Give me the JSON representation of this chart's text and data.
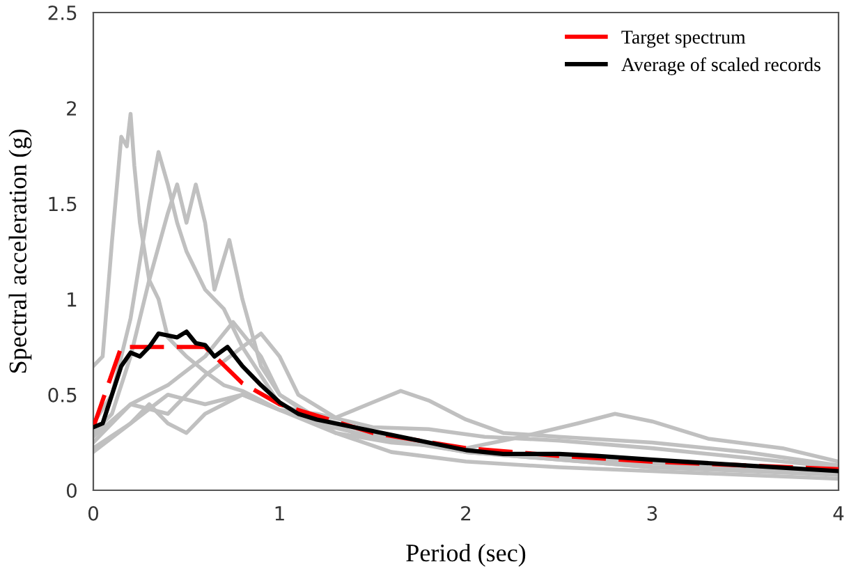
{
  "chart_data": {
    "type": "line",
    "xlabel": "Period (sec)",
    "ylabel": "Spectral acceleration (g)",
    "xlim": [
      0,
      4
    ],
    "xticks": [
      0,
      1,
      2,
      3,
      4
    ],
    "ylim": [
      0,
      2.5
    ],
    "yticks": [
      0,
      0.5,
      1,
      1.5,
      2,
      2.5
    ],
    "grid": false,
    "legend": "top right",
    "marker": "none",
    "series": [
      {
        "color": "#c0c0c0",
        "x": [
          0,
          0.05,
          0.1,
          0.15,
          0.18,
          0.2,
          0.22,
          0.25,
          0.3,
          0.35,
          0.4,
          0.5,
          0.6,
          0.7,
          0.8,
          1.0,
          1.2,
          1.5,
          2,
          2.5,
          3,
          3.5,
          4
        ],
        "values": [
          0.65,
          0.7,
          1.3,
          1.85,
          1.8,
          1.97,
          1.7,
          1.4,
          1.1,
          1.0,
          0.8,
          0.7,
          0.62,
          0.55,
          0.52,
          0.42,
          0.35,
          0.28,
          0.2,
          0.17,
          0.14,
          0.12,
          0.1
        ]
      },
      {
        "color": "#c0c0c0",
        "x": [
          0,
          0.1,
          0.2,
          0.3,
          0.35,
          0.4,
          0.45,
          0.5,
          0.6,
          0.7,
          0.8,
          0.9,
          1.0,
          1.2,
          1.4,
          1.6,
          2,
          2.5,
          3,
          4
        ],
        "values": [
          0.35,
          0.5,
          0.9,
          1.5,
          1.77,
          1.6,
          1.4,
          1.25,
          1.05,
          0.95,
          0.75,
          0.6,
          0.45,
          0.38,
          0.3,
          0.28,
          0.2,
          0.16,
          0.12,
          0.09
        ]
      },
      {
        "color": "#c0c0c0",
        "x": [
          0,
          0.1,
          0.2,
          0.3,
          0.4,
          0.45,
          0.5,
          0.55,
          0.6,
          0.65,
          0.73,
          0.8,
          0.9,
          1.0,
          1.2,
          1.6,
          2,
          3,
          4
        ],
        "values": [
          0.3,
          0.4,
          0.7,
          1.1,
          1.45,
          1.6,
          1.4,
          1.6,
          1.4,
          1.05,
          1.31,
          1.0,
          0.65,
          0.5,
          0.38,
          0.27,
          0.2,
          0.12,
          0.08
        ]
      },
      {
        "color": "#c0c0c0",
        "x": [
          0,
          0.2,
          0.4,
          0.6,
          0.8,
          0.9,
          1.0,
          1.1,
          1.3,
          1.5,
          1.65,
          1.8,
          2,
          2.2,
          2.5,
          3,
          3.5,
          4
        ],
        "values": [
          0.25,
          0.45,
          0.4,
          0.6,
          0.75,
          0.82,
          0.7,
          0.5,
          0.38,
          0.46,
          0.52,
          0.47,
          0.37,
          0.3,
          0.28,
          0.25,
          0.2,
          0.13
        ]
      },
      {
        "color": "#c0c0c0",
        "x": [
          0,
          0.2,
          0.4,
          0.6,
          0.8,
          1.0,
          1.3,
          1.6,
          2,
          2.3,
          2.6,
          2.8,
          3,
          3.3,
          3.7,
          4
        ],
        "values": [
          0.2,
          0.35,
          0.5,
          0.45,
          0.5,
          0.42,
          0.3,
          0.25,
          0.22,
          0.28,
          0.35,
          0.4,
          0.36,
          0.27,
          0.22,
          0.15
        ]
      },
      {
        "color": "#c0c0c0",
        "x": [
          0,
          0.2,
          0.3,
          0.4,
          0.5,
          0.6,
          0.8,
          1.0,
          1.2,
          1.5,
          1.8,
          2.1,
          2.5,
          3,
          3.5,
          4
        ],
        "values": [
          0.22,
          0.35,
          0.45,
          0.35,
          0.3,
          0.4,
          0.5,
          0.42,
          0.4,
          0.33,
          0.32,
          0.28,
          0.26,
          0.22,
          0.17,
          0.12
        ]
      },
      {
        "color": "#c0c0c0",
        "x": [
          0,
          0.2,
          0.4,
          0.6,
          0.75,
          0.9,
          1.0,
          1.3,
          1.6,
          2,
          2.5,
          3,
          3.5,
          4
        ],
        "values": [
          0.28,
          0.45,
          0.55,
          0.7,
          0.88,
          0.7,
          0.5,
          0.3,
          0.2,
          0.15,
          0.12,
          0.1,
          0.08,
          0.06
        ]
      },
      {
        "name": "Target spectrum",
        "color": "#ff0000",
        "line_style": "dashed",
        "x": [
          0,
          0.15,
          0.6,
          0.8,
          1.0,
          1.5,
          2,
          2.5,
          3,
          3.5,
          4
        ],
        "values": [
          0.33,
          0.75,
          0.75,
          0.56,
          0.45,
          0.3,
          0.22,
          0.18,
          0.15,
          0.13,
          0.11
        ]
      },
      {
        "name": "Average of scaled records",
        "color": "#000000",
        "x": [
          0,
          0.05,
          0.1,
          0.15,
          0.2,
          0.25,
          0.3,
          0.35,
          0.4,
          0.45,
          0.5,
          0.55,
          0.6,
          0.65,
          0.72,
          0.8,
          0.9,
          1.0,
          1.1,
          1.2,
          1.4,
          1.6,
          1.8,
          2.0,
          2.2,
          2.5,
          2.7,
          3.0,
          3.5,
          4.0
        ],
        "values": [
          0.33,
          0.35,
          0.5,
          0.65,
          0.72,
          0.7,
          0.75,
          0.82,
          0.81,
          0.8,
          0.83,
          0.77,
          0.76,
          0.7,
          0.75,
          0.65,
          0.55,
          0.46,
          0.4,
          0.37,
          0.33,
          0.29,
          0.25,
          0.21,
          0.19,
          0.19,
          0.18,
          0.16,
          0.13,
          0.1
        ]
      }
    ]
  }
}
